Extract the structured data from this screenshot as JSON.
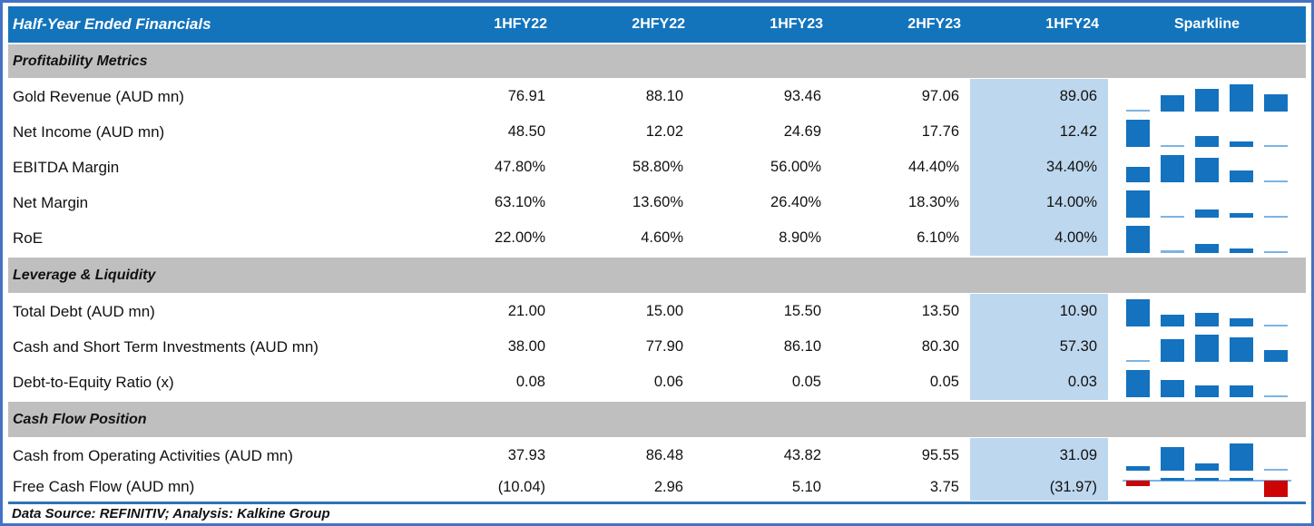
{
  "table": {
    "title": "Half-Year Ended Financials",
    "columns": [
      "1HFY22",
      "2HFY22",
      "1HFY23",
      "2HFY23",
      "1HFY24"
    ],
    "sparkline_label": "Sparkline",
    "highlighted_column": "1HFY24",
    "sections": [
      {
        "label": "Profitability Metrics",
        "rows": [
          {
            "label": "Gold Revenue (AUD mn)",
            "values": [
              "76.91",
              "88.10",
              "93.46",
              "97.06",
              "89.06"
            ],
            "spark": [
              76.91,
              88.1,
              93.46,
              97.06,
              89.06
            ]
          },
          {
            "label": "Net Income (AUD mn)",
            "values": [
              "48.50",
              "12.02",
              "24.69",
              "17.76",
              "12.42"
            ],
            "spark": [
              48.5,
              12.02,
              24.69,
              17.76,
              12.42
            ]
          },
          {
            "label": "EBITDA Margin",
            "values": [
              "47.80%",
              "58.80%",
              "56.00%",
              "44.40%",
              "34.40%"
            ],
            "spark": [
              47.8,
              58.8,
              56.0,
              44.4,
              34.4
            ]
          },
          {
            "label": "Net Margin",
            "values": [
              "63.10%",
              "13.60%",
              "26.40%",
              "18.30%",
              "14.00%"
            ],
            "spark": [
              63.1,
              13.6,
              26.4,
              18.3,
              14.0
            ]
          },
          {
            "label": "RoE",
            "values": [
              "22.00%",
              "4.60%",
              "8.90%",
              "6.10%",
              "4.00%"
            ],
            "spark": [
              22.0,
              4.6,
              8.9,
              6.1,
              4.0
            ]
          }
        ]
      },
      {
        "label": "Leverage & Liquidity",
        "rows": [
          {
            "label": "Total Debt (AUD mn)",
            "values": [
              "21.00",
              "15.00",
              "15.50",
              "13.50",
              "10.90"
            ],
            "spark": [
              21.0,
              15.0,
              15.5,
              13.5,
              10.9
            ]
          },
          {
            "label": "Cash and Short Term Investments (AUD mn)",
            "values": [
              "38.00",
              "77.90",
              "86.10",
              "80.30",
              "57.30"
            ],
            "spark": [
              38.0,
              77.9,
              86.1,
              80.3,
              57.3
            ]
          },
          {
            "label": "Debt-to-Equity Ratio (x)",
            "values": [
              "0.08",
              "0.06",
              "0.05",
              "0.05",
              "0.03"
            ],
            "spark": [
              0.08,
              0.06,
              0.05,
              0.05,
              0.03
            ]
          }
        ]
      },
      {
        "label": "Cash Flow Position",
        "rows": [
          {
            "label": "Cash from Operating Activities (AUD mn)",
            "values": [
              "37.93",
              "86.48",
              "43.82",
              "95.55",
              "31.09"
            ],
            "spark": [
              37.93,
              86.48,
              43.82,
              95.55,
              31.09
            ]
          },
          {
            "label": "Free Cash Flow (AUD mn)",
            "values": [
              "(10.04)",
              "2.96",
              "5.10",
              "3.75",
              "(31.97)"
            ],
            "spark": [
              -10.04,
              2.96,
              5.1,
              3.75,
              -31.97
            ]
          }
        ]
      }
    ]
  },
  "footer": {
    "text": "Data Source: REFINITIV; Analysis: Kalkine Group"
  },
  "colors": {
    "header_blue": "#1374BC",
    "band_gray": "#BFBFBF",
    "highlight_blue": "#BDD7EE",
    "bar_blue": "#1472BE",
    "bar_light_blue": "#7EB3E3",
    "negative_red": "#CC0404",
    "frame_blue": "#4472C4",
    "divider_blue": "#2E75B6"
  }
}
